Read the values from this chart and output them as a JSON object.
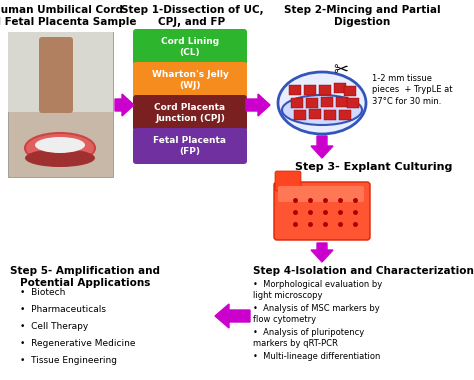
{
  "background_color": "#ffffff",
  "title_top_left": "Human Umbilical Cord\nand Fetal Placenta Sample",
  "title_step1": "Step 1-Dissection of UC,\nCPJ, and FP",
  "title_step2": "Step 2-Mincing and Partial\nDigestion",
  "title_step3": "Step 3- Explant Culturing",
  "title_step4": "Step 4-Isolation and Characterization",
  "title_step5": "Step 5- Amplification and\nPotential Applications",
  "boxes": [
    {
      "label": "Cord Lining\n(CL)",
      "color": "#2db52d",
      "text_color": "#ffffff"
    },
    {
      "label": "Wharton's Jelly\n(WJ)",
      "color": "#f78c1e",
      "text_color": "#ffffff"
    },
    {
      "label": "Cord Placenta\nJunction (CPJ)",
      "color": "#7a2020",
      "text_color": "#ffffff"
    },
    {
      "label": "Fetal Placenta\n(FP)",
      "color": "#7030a0",
      "text_color": "#ffffff"
    }
  ],
  "step2_note": "1-2 mm tissue\npieces  + TrypLE at\n37°C for 30 min.",
  "step4_bullets": [
    "Morphological evaluation by\nlight microscopy",
    "Analysis of MSC markers by\nflow cytometry",
    "Analysis of pluripotency\nmarkers by qRT-PCR",
    "Multi-lineage differentiation"
  ],
  "step5_bullets": [
    "Biotech",
    "Pharmaceuticals",
    "Cell Therapy",
    "Regenerative Medicine",
    "Tissue Engineering"
  ],
  "arrow_color": "#cc00cc"
}
